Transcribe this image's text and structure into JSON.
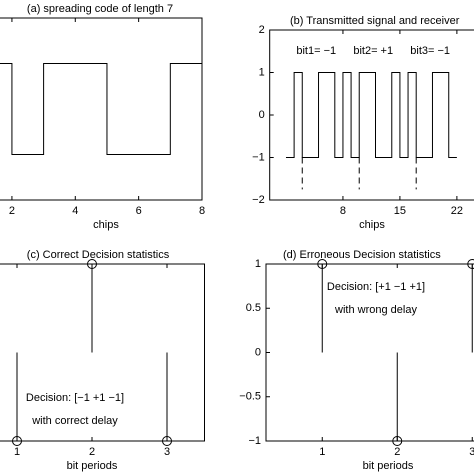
{
  "chart_data": [
    {
      "type": "step",
      "title": "(a) spreading code of length 7",
      "xlabel": "chips",
      "x": [
        1,
        2,
        3,
        4,
        5,
        6,
        7,
        8
      ],
      "values": [
        1,
        -1,
        1,
        1,
        -1,
        -1,
        1,
        1
      ],
      "color": "#000000",
      "xlim": [
        1,
        8
      ],
      "ylim": [
        -2,
        2
      ],
      "xticks": [
        2,
        4,
        6,
        8
      ]
    },
    {
      "type": "step",
      "title": "(b) Transmitted signal and receiver",
      "xlabel": "chips",
      "x": [
        1,
        2,
        3,
        4,
        5,
        6,
        7,
        8,
        9,
        10,
        11,
        12,
        13,
        14,
        15,
        16,
        17,
        18,
        19,
        20,
        21,
        22
      ],
      "values": [
        -1,
        1,
        -1,
        -1,
        1,
        1,
        -1,
        1,
        -1,
        1,
        1,
        -1,
        -1,
        1,
        -1,
        1,
        -1,
        -1,
        1,
        1,
        -1,
        -1
      ],
      "color": "#000000",
      "xlim": [
        -1,
        25
      ],
      "ylim": [
        -2,
        2
      ],
      "xticks": [
        8,
        15,
        22
      ],
      "yticks": [
        2,
        1,
        0,
        {
          "value": -1,
          "label": "−1"
        },
        {
          "value": -2,
          "label": "−2"
        }
      ],
      "dashed_x": [
        3,
        10,
        17
      ],
      "annotations": [
        "bit1= −1",
        "bit2= +1",
        "bit3= −1"
      ]
    },
    {
      "type": "stem",
      "title": "(c) Correct Decision statistics",
      "xlabel": "bit periods",
      "x": [
        1,
        2,
        3
      ],
      "values": [
        -1,
        1,
        -1
      ],
      "color": "#000000",
      "xlim": [
        0.5,
        3.5
      ],
      "ylim": [
        -1,
        1
      ],
      "xticks": [
        1,
        2,
        3
      ],
      "annotations": [
        "Decision: [−1 +1 −1]",
        "with correct delay"
      ]
    },
    {
      "type": "stem",
      "title": "(d) Erroneous Decision statistics",
      "xlabel": "bit periods",
      "x": [
        1,
        2,
        3
      ],
      "values": [
        1,
        -1,
        1
      ],
      "color": "#000000",
      "xlim": [
        0.25,
        3.5
      ],
      "ylim": [
        -1,
        1
      ],
      "xticks": [
        1,
        2,
        3
      ],
      "yticks": [
        1,
        0.5,
        0,
        {
          "value": -0.5,
          "label": "−0.5"
        },
        {
          "value": -1,
          "label": "−1"
        }
      ],
      "annotations": [
        "Decision: [+1 −1 +1]",
        "with wrong delay"
      ]
    }
  ]
}
